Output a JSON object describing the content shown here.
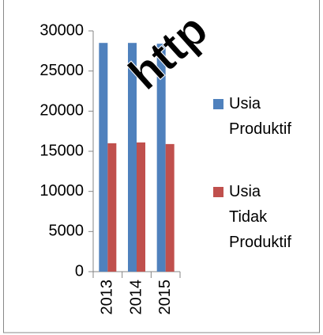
{
  "chart_data": {
    "type": "bar",
    "categories": [
      "2013",
      "2014",
      "2015"
    ],
    "series": [
      {
        "name": "Usia Produktif",
        "color": "#4f81bd",
        "values": [
          28500,
          28500,
          28400
        ]
      },
      {
        "name": "Usia Tidak Produktif",
        "color": "#c0504d",
        "values": [
          16000,
          16100,
          15900
        ]
      }
    ],
    "ylim": [
      0,
      30000
    ],
    "yticks": [
      0,
      5000,
      10000,
      15000,
      20000,
      25000,
      30000
    ],
    "legend": "right",
    "annotations": [
      {
        "text": "http",
        "color": "#ff0000"
      }
    ]
  }
}
